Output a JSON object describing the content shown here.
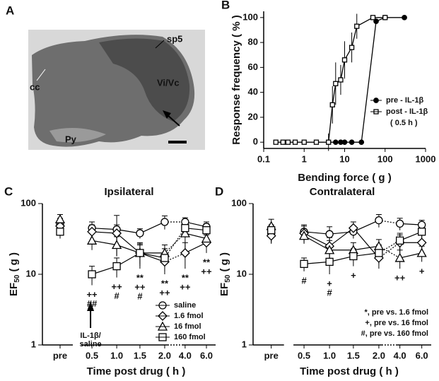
{
  "panel_a": {
    "label": "A",
    "annotations": [
      "sp5",
      "cc",
      "Vi/Vc",
      "Py"
    ]
  },
  "chart_data": [
    {
      "type": "scatter",
      "panel": "B",
      "xlabel": "Bending force ( g )",
      "ylabel": "Response frequency ( % )",
      "log_x": true,
      "xlim": [
        0.1,
        1000
      ],
      "xticks": [
        0.1,
        1,
        10,
        100,
        1000
      ],
      "ylim": [
        -5,
        105
      ],
      "yticks": [
        0,
        20,
        40,
        60,
        80,
        100
      ],
      "series": [
        {
          "name": "pre - IL-1β",
          "color": "#000000",
          "marker": "filled-circle",
          "x": [
            4,
            6,
            8,
            10,
            15,
            26,
            60,
            100,
            300
          ],
          "values": [
            0,
            0,
            0,
            0,
            0,
            0,
            97,
            100,
            100
          ],
          "errors": [
            0,
            0,
            0,
            0,
            0,
            0,
            0,
            0,
            0
          ]
        },
        {
          "name": "post - IL-1β",
          "color": "#000000",
          "marker": "open-square",
          "x": [
            0.2,
            0.3,
            0.4,
            0.6,
            1,
            2,
            4,
            5,
            6,
            8,
            10,
            15,
            20,
            50,
            100
          ],
          "values": [
            0,
            0,
            0,
            0,
            0,
            0,
            0,
            30,
            47,
            50,
            66,
            76,
            93,
            100,
            100
          ],
          "errors": [
            0,
            0,
            0,
            0,
            0,
            0,
            7,
            15,
            17,
            12,
            15,
            12,
            10,
            0,
            0
          ]
        }
      ],
      "legend_note": "( 0.5 h )"
    },
    {
      "type": "line",
      "panel": "C",
      "title": "Ipsilateral",
      "xlabel": "Time post drug ( h )",
      "ylabel": [
        "EF",
        "50",
        " ( g )"
      ],
      "log_y": true,
      "categories": [
        "pre",
        "0.5",
        "1.0",
        "1.5",
        "2.0",
        "4.0",
        "6.0"
      ],
      "ylim": [
        1,
        100
      ],
      "yticks": [
        1,
        10,
        100
      ],
      "series": [
        {
          "name": "saline",
          "marker": "circle",
          "values": [
            50,
            45,
            43,
            38,
            55,
            55,
            47
          ],
          "errors": [
            12,
            10,
            25,
            6,
            12,
            8,
            8
          ]
        },
        {
          "name": "1.6 fmol",
          "marker": "diamond",
          "values": [
            48,
            40,
            38,
            20,
            15,
            20,
            28
          ],
          "errors": [
            10,
            10,
            12,
            8,
            5,
            8,
            8
          ]
        },
        {
          "name": "16 fmol",
          "marker": "triangle",
          "values": [
            60,
            30,
            26,
            20,
            20,
            38,
            32
          ],
          "errors": [
            10,
            8,
            8,
            6,
            6,
            15,
            8
          ]
        },
        {
          "name": "160 fmol",
          "marker": "square",
          "values": [
            40,
            10,
            13,
            20,
            17,
            45,
            42
          ],
          "errors": [
            8,
            3,
            4,
            7,
            6,
            12,
            10
          ]
        }
      ],
      "annotations": [
        {
          "x": "0.5",
          "text": [
            "++",
            "##"
          ]
        },
        {
          "x": "1.0",
          "text": [
            "++",
            "#"
          ]
        },
        {
          "x": "1.5",
          "text": [
            "**",
            "++",
            "#"
          ]
        },
        {
          "x": "2.0",
          "text": [
            "**",
            "++"
          ]
        },
        {
          "x": "4.0",
          "text": [
            "**",
            "++"
          ]
        },
        {
          "x": "6.0",
          "text": [
            "**",
            "++"
          ]
        }
      ],
      "arrow_label": [
        "IL-1β/",
        "saline"
      ]
    },
    {
      "type": "line",
      "panel": "D",
      "title": "Contralateral",
      "xlabel": "Time post drug ( h )",
      "ylabel": [
        "EF",
        "50",
        " ( g )"
      ],
      "log_y": true,
      "categories": [
        "pre",
        "0.5",
        "1.0",
        "1.5",
        "2.0",
        "4.0",
        "6.0"
      ],
      "ylim": [
        1,
        100
      ],
      "yticks": [
        1,
        10,
        100
      ],
      "series": [
        {
          "name": "saline",
          "marker": "circle",
          "values": [
            38,
            40,
            37,
            40,
            58,
            52,
            50
          ],
          "errors": [
            10,
            10,
            10,
            8,
            12,
            10,
            8
          ]
        },
        {
          "name": "1.6 fmol",
          "marker": "diamond",
          "values": [
            35,
            38,
            25,
            45,
            17,
            28,
            28
          ],
          "errors": [
            8,
            10,
            8,
            10,
            5,
            8,
            8
          ]
        },
        {
          "name": "16 fmol",
          "marker": "triangle",
          "values": [
            48,
            35,
            22,
            22,
            25,
            17,
            20
          ],
          "errors": [
            12,
            8,
            8,
            6,
            6,
            5,
            5
          ]
        },
        {
          "name": "160 fmol",
          "marker": "square",
          "values": [
            42,
            14,
            15,
            18,
            20,
            30,
            40
          ],
          "errors": [
            8,
            3,
            5,
            5,
            6,
            8,
            10
          ]
        }
      ],
      "annotations": [
        {
          "x": "0.5",
          "text": [
            "#"
          ]
        },
        {
          "x": "1.0",
          "text": [
            "+",
            "#"
          ]
        },
        {
          "x": "1.5",
          "text": [
            "+"
          ]
        },
        {
          "x": "4.0",
          "text": [
            "++"
          ]
        },
        {
          "x": "6.0",
          "text": [
            "+"
          ]
        }
      ],
      "notes": [
        "*, pre vs. 1.6 fmol",
        "+, pre vs. 16 fmol",
        "#, pre vs. 160 fmol"
      ]
    }
  ]
}
